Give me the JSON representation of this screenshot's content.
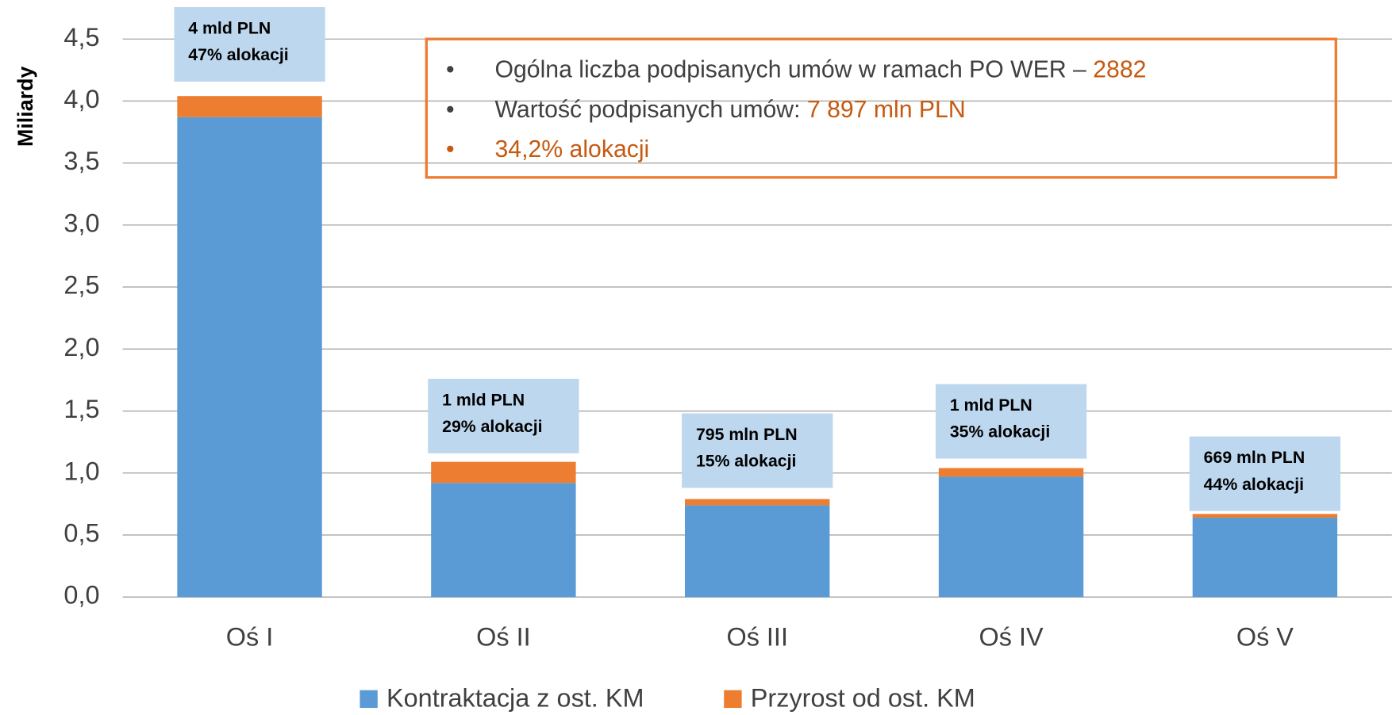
{
  "chart_data": {
    "type": "stacked_bar",
    "y_axis_label": "Miliardy",
    "categories": [
      "Oś I",
      "Oś II",
      "Oś III",
      "Oś IV",
      "Oś V"
    ],
    "series": [
      {
        "name": "Kontraktacja z ost. KM",
        "color": "#5b9bd5",
        "values": [
          3.87,
          0.92,
          0.74,
          0.97,
          0.64
        ]
      },
      {
        "name": "Przyrost od ost. KM",
        "color": "#ed7d31",
        "values": [
          0.17,
          0.17,
          0.05,
          0.07,
          0.03
        ]
      }
    ],
    "ylim": [
      0,
      4.5
    ],
    "yticks": [
      {
        "value": 0,
        "label": "0,0"
      },
      {
        "value": 0.5,
        "label": "0,5"
      },
      {
        "value": 1,
        "label": "1,0"
      },
      {
        "value": 1.5,
        "label": "1,5"
      },
      {
        "value": 2,
        "label": "2,0"
      },
      {
        "value": 2.5,
        "label": "2,5"
      },
      {
        "value": 3,
        "label": "3,0"
      },
      {
        "value": 3.5,
        "label": "3,5"
      },
      {
        "value": 4,
        "label": "4,0"
      },
      {
        "value": 4.5,
        "label": "4,5"
      }
    ],
    "grid": true,
    "legend": "bottom",
    "annotations": [
      [
        "4 mld PLN",
        "47% alokacji"
      ],
      [
        "1 mld PLN",
        "29% alokacji"
      ],
      [
        "795 mln PLN",
        "15% alokacji"
      ],
      [
        "1 mld PLN",
        "35% alokacji"
      ],
      [
        "669 mln PLN",
        "44% alokacji"
      ]
    ],
    "annotation_color": "#bdd7ee",
    "info_box": {
      "border_color": "#ed7d31",
      "lines": [
        {
          "bullet": "•",
          "bullet_color": "#404040",
          "parts": [
            {
              "text": "Ogólna liczba podpisanych umów w ramach PO WER – ",
              "color": "#404040"
            },
            {
              "text": "2882",
              "color": "#c55a11"
            }
          ]
        },
        {
          "bullet": "•",
          "bullet_color": "#404040",
          "parts": [
            {
              "text": "Wartość podpisanych umów: ",
              "color": "#404040"
            },
            {
              "text": "7 897 mln PLN",
              "color": "#c55a11"
            }
          ]
        },
        {
          "bullet": "•",
          "bullet_color": "#c55a11",
          "parts": [
            {
              "text": "34,2% alokacji",
              "color": "#c55a11"
            }
          ]
        }
      ]
    }
  }
}
